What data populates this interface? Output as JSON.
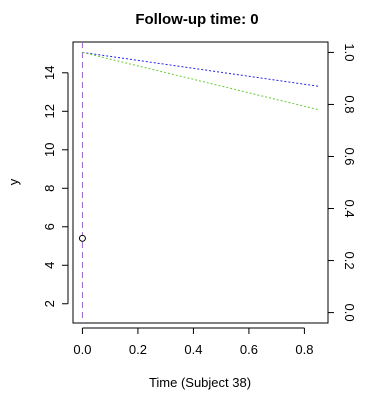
{
  "chart_data": {
    "type": "line",
    "title": "Follow-up time: 0",
    "xlabel": "Time (Subject 38)",
    "ylabel": "y",
    "xlim": [
      -0.034,
      0.885
    ],
    "ylim": [
      1.0,
      15.6
    ],
    "y2lim": [
      -0.04,
      1.04
    ],
    "xticks": [
      0.0,
      0.2,
      0.4,
      0.6,
      0.8
    ],
    "xtick_labels": [
      "0.0",
      "0.2",
      "0.4",
      "0.6",
      "0.8"
    ],
    "yticks": [
      2,
      4,
      6,
      8,
      10,
      12,
      14
    ],
    "ytick_labels": [
      "2",
      "4",
      "6",
      "8",
      "10",
      "12",
      "14"
    ],
    "y2ticks": [
      0.0,
      0.2,
      0.4,
      0.6,
      0.8,
      1.0
    ],
    "y2tick_labels": [
      "0.0",
      "0.2",
      "0.4",
      "0.6",
      "0.8",
      "1.0"
    ],
    "points": [
      {
        "x": 0.0,
        "y": 5.4
      }
    ],
    "series": [
      {
        "axis": "right",
        "color": "#2222ee",
        "dash": "dotted",
        "x": [
          0.0,
          0.85
        ],
        "y": [
          1.0,
          0.87
        ]
      },
      {
        "axis": "right",
        "color": "#66cc33",
        "dash": "dotted",
        "x": [
          0.0,
          0.85
        ],
        "y": [
          1.0,
          0.78
        ]
      }
    ],
    "vline": {
      "x": 0.0,
      "color": "#9966cc",
      "dash": "dashed"
    },
    "grid": false,
    "legend": "none"
  }
}
